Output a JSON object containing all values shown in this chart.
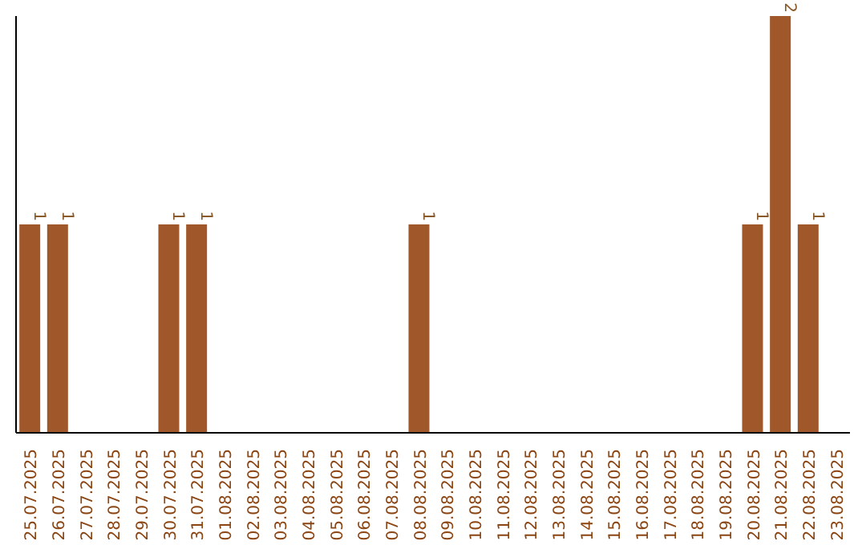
{
  "chart_data": {
    "type": "bar",
    "categories": [
      "25.07.2025",
      "26.07.2025",
      "27.07.2025",
      "28.07.2025",
      "29.07.2025",
      "30.07.2025",
      "31.07.2025",
      "01.08.2025",
      "02.08.2025",
      "03.08.2025",
      "04.08.2025",
      "05.08.2025",
      "06.08.2025",
      "07.08.2025",
      "08.08.2025",
      "09.08.2025",
      "10.08.2025",
      "11.08.2025",
      "12.08.2025",
      "13.08.2025",
      "14.08.2025",
      "15.08.2025",
      "16.08.2025",
      "17.08.2025",
      "18.08.2025",
      "19.08.2025",
      "20.08.2025",
      "21.08.2025",
      "22.08.2025",
      "23.08.2025"
    ],
    "values": [
      1,
      1,
      0,
      0,
      0,
      1,
      1,
      0,
      0,
      0,
      0,
      0,
      0,
      0,
      1,
      0,
      0,
      0,
      0,
      0,
      0,
      0,
      0,
      0,
      0,
      0,
      1,
      2,
      1,
      0
    ],
    "value_labels": [
      "1",
      "1",
      null,
      null,
      null,
      "1",
      "1",
      null,
      null,
      null,
      null,
      null,
      null,
      null,
      "1",
      null,
      null,
      null,
      null,
      null,
      null,
      null,
      null,
      null,
      null,
      null,
      "1",
      "2",
      "1",
      null
    ],
    "color": "#a0582a",
    "tick_labels": "x"
  }
}
